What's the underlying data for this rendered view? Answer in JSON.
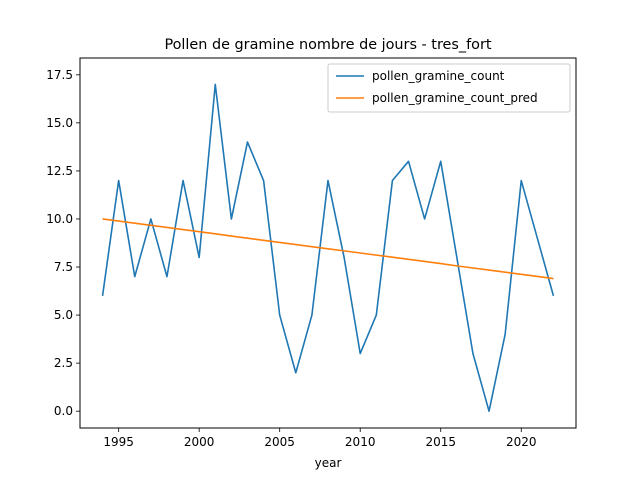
{
  "chart_data": {
    "type": "line",
    "title": "Pollen de gramine nombre de jours - tres_fort",
    "xlabel": "year",
    "ylabel": "",
    "xlim": [
      1992.6,
      2023.4
    ],
    "ylim": [
      -0.875,
      18.375
    ],
    "xticks": [
      1995,
      2000,
      2005,
      2010,
      2015,
      2020
    ],
    "yticks": [
      0.0,
      2.5,
      5.0,
      7.5,
      10.0,
      12.5,
      15.0,
      17.5
    ],
    "xtick_labels": [
      "1995",
      "2000",
      "2005",
      "2010",
      "2015",
      "2020"
    ],
    "ytick_labels": [
      "0.0",
      "2.5",
      "5.0",
      "7.5",
      "10.0",
      "12.5",
      "15.0",
      "17.5"
    ],
    "grid": false,
    "legend_position": "top-right",
    "x": [
      1994,
      1995,
      1996,
      1997,
      1998,
      1999,
      2000,
      2001,
      2002,
      2003,
      2004,
      2005,
      2006,
      2007,
      2008,
      2009,
      2010,
      2011,
      2012,
      2013,
      2014,
      2015,
      2016,
      2017,
      2018,
      2019,
      2020,
      2021,
      2022
    ],
    "series": [
      {
        "name": "pollen_gramine_count",
        "color": "#1f77b4",
        "values": [
          6,
          12,
          7,
          10,
          7,
          12,
          8,
          17,
          10,
          14,
          12,
          5,
          2,
          5,
          12,
          8,
          3,
          5,
          12,
          13,
          10,
          13,
          8,
          3,
          0,
          4,
          12,
          9,
          6
        ]
      },
      {
        "name": "pollen_gramine_count_pred",
        "color": "#ff7f0e",
        "values": [
          10.0,
          9.89,
          9.78,
          9.67,
          9.56,
          9.45,
          9.34,
          9.23,
          9.11,
          9.0,
          8.89,
          8.78,
          8.67,
          8.56,
          8.45,
          8.34,
          8.23,
          8.12,
          8.01,
          7.9,
          7.79,
          7.68,
          7.56,
          7.45,
          7.34,
          7.23,
          7.12,
          7.01,
          6.9
        ]
      }
    ]
  }
}
